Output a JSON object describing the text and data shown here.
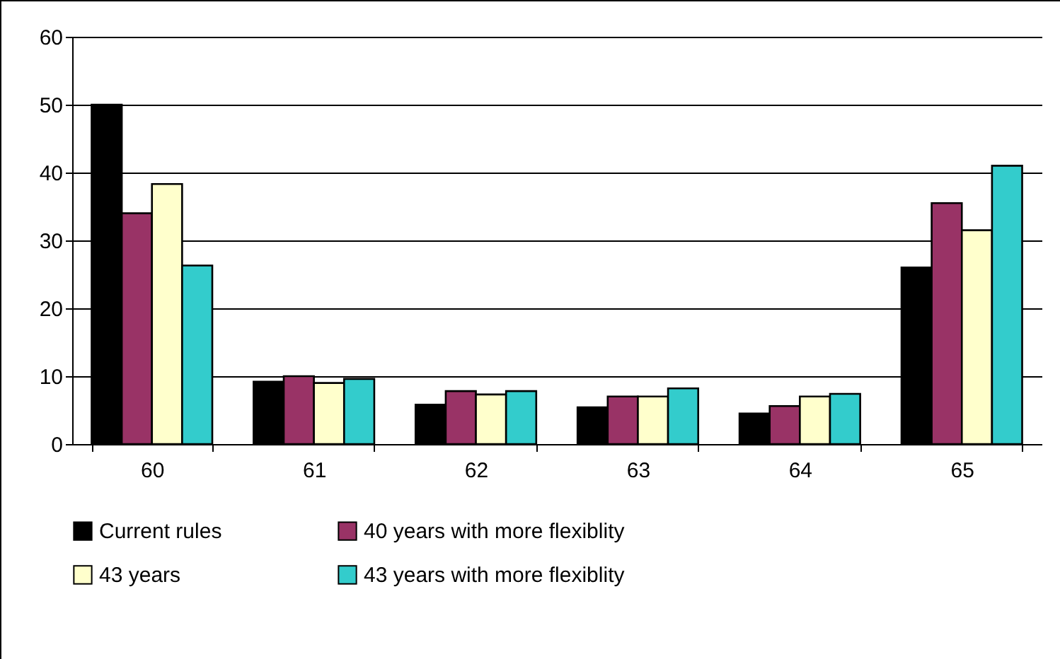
{
  "chart_data": {
    "type": "bar",
    "categories": [
      "60",
      "61",
      "62",
      "63",
      "64",
      "65"
    ],
    "series": [
      {
        "name": "Current rules",
        "color": "#000000",
        "values": [
          50,
          9.2,
          5.8,
          5.4,
          4.5,
          26
        ]
      },
      {
        "name": "40 years with more flexiblity",
        "color": "#993366",
        "values": [
          34,
          10,
          7.8,
          7,
          5.6,
          35.5
        ]
      },
      {
        "name": "43 years",
        "color": "#ffffcc",
        "values": [
          38.3,
          9,
          7.3,
          7,
          7,
          31.5
        ]
      },
      {
        "name": "43 years with more flexiblity",
        "color": "#33cccc",
        "values": [
          26.3,
          9.6,
          7.8,
          8.2,
          7.4,
          41
        ]
      }
    ],
    "ylim": [
      0,
      60
    ],
    "yticks": [
      0,
      10,
      20,
      30,
      40,
      50,
      60
    ],
    "grid": "y",
    "legend": "bottom"
  }
}
